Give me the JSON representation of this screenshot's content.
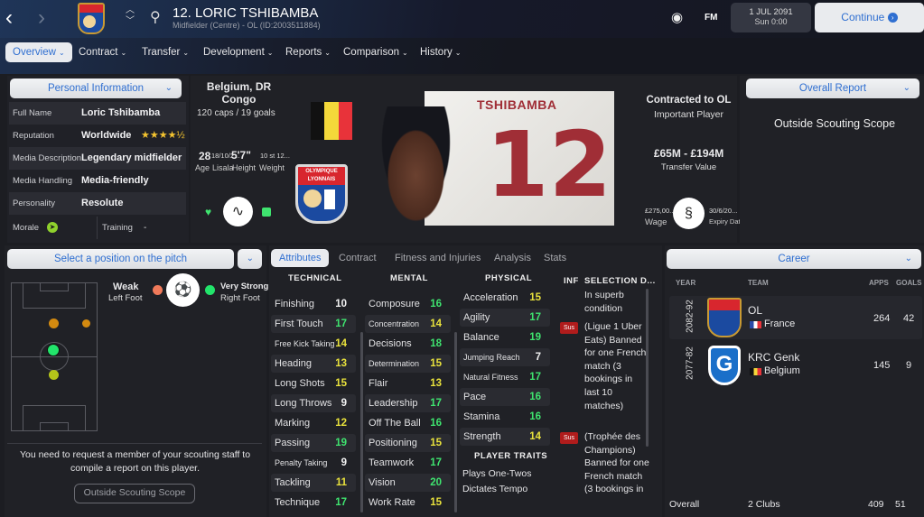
{
  "header": {
    "player_name": "12. LORIC TSHIBAMBA",
    "subtitle": "Midfielder (Centre) - OL (ID:2003511884)",
    "date": "1 JUL 2091",
    "time": "Sun 0:00",
    "continue_label": "Continue",
    "fm_label": "FM",
    "club_badge_text": "OLYMPIQUE LYONNAIS"
  },
  "nav": [
    {
      "label": "Overview"
    },
    {
      "label": "Contract"
    },
    {
      "label": "Transfer"
    },
    {
      "label": "Development"
    },
    {
      "label": "Reports"
    },
    {
      "label": "Comparison"
    },
    {
      "label": "History"
    }
  ],
  "personal": {
    "dropdown": "Personal Information",
    "rows": [
      {
        "label": "Full Name",
        "value": "Loric Tshibamba"
      },
      {
        "label": "Reputation",
        "value": "Worldwide"
      },
      {
        "label": "Media Description",
        "value": "Legendary midfielder"
      },
      {
        "label": "Media Handling",
        "value": "Media-friendly"
      },
      {
        "label": "Personality",
        "value": "Resolute"
      }
    ],
    "reputation_stars": 4.5,
    "morale_label": "Morale",
    "training_label": "Training",
    "training_value": "-"
  },
  "bio": {
    "nationality": "Belgium, DR Congo",
    "caps": "120 caps / 19 goals",
    "age": "28",
    "age_label": "Age",
    "dob": "18/10/2...",
    "birthplace": "Lisala",
    "height": "5'7\"",
    "height_label": "Height",
    "weight": "10 st 12...",
    "weight_label": "Weight",
    "shirt_name": "TSHIBAMBA",
    "shirt_number": "12",
    "contract_title": "Contracted to OL",
    "squad_status": "Important Player",
    "transfer_value": "£65M - £194M",
    "transfer_value_label": "Transfer Value",
    "wage": "£275,00...",
    "wage_label": "Wage",
    "expiry": "30/6/20...",
    "expiry_label": "Expiry Date",
    "flag_colors": [
      "#111111",
      "#f4d83a",
      "#e8333a"
    ]
  },
  "report": {
    "dropdown": "Overall Report",
    "text": "Outside Scouting Scope"
  },
  "pitch": {
    "dropdown": "Select a position on the pitch",
    "left_foot": "Weak",
    "left_foot_label": "Left Foot",
    "right_foot": "Very Strong",
    "right_foot_label": "Right Foot",
    "message": "You need to request a member of your scouting staff to compile a report on this player.",
    "button": "Outside Scouting Scope"
  },
  "attr_tabs": [
    {
      "label": "Attributes"
    },
    {
      "label": "Contract"
    },
    {
      "label": "Fitness and Injuries"
    },
    {
      "label": "Analysis"
    },
    {
      "label": "Stats"
    }
  ],
  "attributes": {
    "technical_title": "TECHNICAL",
    "mental_title": "MENTAL",
    "physical_title": "PHYSICAL",
    "technical": [
      [
        "Finishing",
        10
      ],
      [
        "First Touch",
        17
      ],
      [
        "Free Kick Taking",
        14
      ],
      [
        "Heading",
        13
      ],
      [
        "Long Shots",
        15
      ],
      [
        "Long Throws",
        9
      ],
      [
        "Marking",
        12
      ],
      [
        "Passing",
        19
      ],
      [
        "Penalty Taking",
        9
      ],
      [
        "Tackling",
        11
      ],
      [
        "Technique",
        17
      ]
    ],
    "mental": [
      [
        "Composure",
        16
      ],
      [
        "Concentration",
        14
      ],
      [
        "Decisions",
        18
      ],
      [
        "Determination",
        15
      ],
      [
        "Flair",
        13
      ],
      [
        "Leadership",
        17
      ],
      [
        "Off The Ball",
        16
      ],
      [
        "Positioning",
        15
      ],
      [
        "Teamwork",
        17
      ],
      [
        "Vision",
        20
      ],
      [
        "Work Rate",
        15
      ]
    ],
    "physical": [
      [
        "Acceleration",
        15
      ],
      [
        "Agility",
        17
      ],
      [
        "Balance",
        19
      ],
      [
        "Jumping Reach",
        7
      ],
      [
        "Natural Fitness",
        17
      ],
      [
        "Pace",
        16
      ],
      [
        "Stamina",
        16
      ],
      [
        "Strength",
        14
      ]
    ],
    "traits_title": "PLAYER TRAITS",
    "traits": [
      "Plays One-Twos",
      "Dictates Tempo"
    ],
    "colors": {
      "low": "#f2f2f2",
      "mid": "#e9e23c",
      "high": "#3fe46f"
    }
  },
  "selection": {
    "inf_title": "INF",
    "title": "SELECTION D...",
    "items": [
      {
        "badge": "",
        "text": "In superb condition"
      },
      {
        "badge": "Sus",
        "text": "(Ligue 1 Uber Eats) Banned for one French match (3 bookings in last 10 matches)"
      },
      {
        "badge": "Sus",
        "text": "(Trophée des Champions) Banned for one French match (3 bookings in"
      }
    ]
  },
  "career": {
    "dropdown": "Career",
    "headers": {
      "year": "YEAR",
      "team": "TEAM",
      "apps": "APPS",
      "goals": "GOALS"
    },
    "rows": [
      {
        "year": "2082-92",
        "team": "OL",
        "country": "France",
        "apps": "264",
        "goals": "42"
      },
      {
        "year": "2077-82",
        "team": "KRC Genk",
        "country": "Belgium",
        "apps": "145",
        "goals": "9"
      }
    ],
    "overall_label": "Overall",
    "overall_clubs": "2 Clubs",
    "overall_apps": "409",
    "overall_goals": "51"
  }
}
